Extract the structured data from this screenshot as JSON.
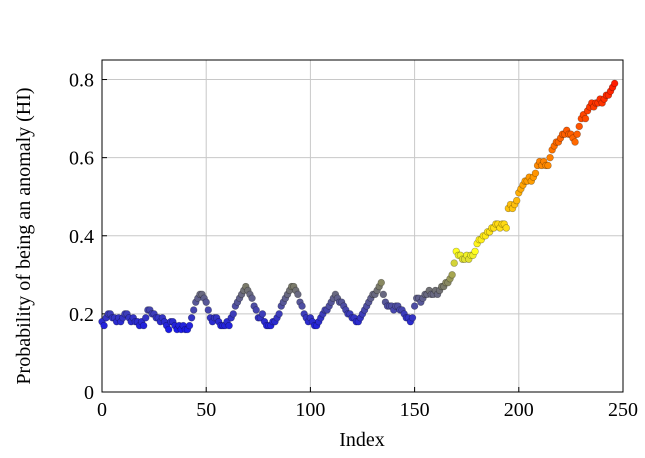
{
  "chart_data": {
    "type": "scatter",
    "x_label": "Index",
    "y_label": "Probability of being an anomaly (HI)",
    "xlim": [
      0,
      250
    ],
    "ylim": [
      0,
      0.85
    ],
    "xticks": [
      0,
      50,
      100,
      150,
      200,
      250
    ],
    "yticks": [
      0,
      0.2,
      0.4,
      0.6,
      0.8
    ],
    "grid": true,
    "colormap": [
      [
        0.16,
        "#1a1ae6"
      ],
      [
        0.27,
        "#7a7a6a"
      ],
      [
        0.36,
        "#ffff20"
      ],
      [
        0.55,
        "#ff9900"
      ],
      [
        0.79,
        "#ff1a00"
      ]
    ],
    "x": [
      0,
      1,
      2,
      3,
      4,
      5,
      6,
      7,
      8,
      9,
      10,
      11,
      12,
      13,
      14,
      15,
      16,
      17,
      18,
      19,
      20,
      21,
      22,
      23,
      24,
      25,
      26,
      27,
      28,
      29,
      30,
      31,
      32,
      33,
      34,
      35,
      36,
      37,
      38,
      39,
      40,
      41,
      42,
      43,
      44,
      45,
      46,
      47,
      48,
      49,
      50,
      51,
      52,
      53,
      54,
      55,
      56,
      57,
      58,
      59,
      60,
      61,
      62,
      63,
      64,
      65,
      66,
      67,
      68,
      69,
      70,
      71,
      72,
      73,
      74,
      75,
      76,
      77,
      78,
      79,
      80,
      81,
      82,
      83,
      84,
      85,
      86,
      87,
      88,
      89,
      90,
      91,
      92,
      93,
      94,
      95,
      96,
      97,
      98,
      99,
      100,
      101,
      102,
      103,
      104,
      105,
      106,
      107,
      108,
      109,
      110,
      111,
      112,
      113,
      114,
      115,
      116,
      117,
      118,
      119,
      120,
      121,
      122,
      123,
      124,
      125,
      126,
      127,
      128,
      129,
      130,
      131,
      132,
      133,
      134,
      135,
      136,
      137,
      138,
      139,
      140,
      141,
      142,
      143,
      144,
      145,
      146,
      147,
      148,
      149,
      150,
      151,
      152,
      153,
      154,
      155,
      156,
      157,
      158,
      159,
      160,
      161,
      162,
      163,
      164,
      165,
      166,
      167,
      168,
      169,
      170,
      171,
      172,
      173,
      174,
      175,
      176,
      177,
      178,
      179,
      180,
      181,
      182,
      183,
      184,
      185,
      186,
      187,
      188,
      189,
      190,
      191,
      192,
      193,
      194,
      195,
      196,
      197,
      198,
      199,
      200,
      201,
      202,
      203,
      204,
      205,
      206,
      207,
      208,
      209,
      210,
      211,
      212,
      213,
      214,
      215,
      216,
      217,
      218,
      219,
      220,
      221,
      222,
      223,
      224,
      225,
      226,
      227,
      228,
      229,
      230,
      231,
      232,
      233,
      234,
      235,
      236,
      237,
      238,
      239,
      240,
      241,
      242,
      243,
      244,
      245,
      246
    ],
    "values": [
      0.18,
      0.17,
      0.19,
      0.2,
      0.2,
      0.19,
      0.19,
      0.18,
      0.19,
      0.18,
      0.19,
      0.2,
      0.2,
      0.19,
      0.18,
      0.19,
      0.18,
      0.18,
      0.17,
      0.18,
      0.17,
      0.19,
      0.21,
      0.21,
      0.2,
      0.2,
      0.19,
      0.19,
      0.18,
      0.19,
      0.18,
      0.17,
      0.16,
      0.18,
      0.18,
      0.17,
      0.16,
      0.17,
      0.16,
      0.17,
      0.16,
      0.16,
      0.17,
      0.19,
      0.21,
      0.23,
      0.24,
      0.25,
      0.25,
      0.24,
      0.23,
      0.21,
      0.19,
      0.18,
      0.19,
      0.19,
      0.18,
      0.17,
      0.17,
      0.17,
      0.18,
      0.17,
      0.19,
      0.2,
      0.22,
      0.23,
      0.24,
      0.25,
      0.26,
      0.27,
      0.26,
      0.25,
      0.24,
      0.22,
      0.21,
      0.19,
      0.19,
      0.2,
      0.18,
      0.17,
      0.17,
      0.17,
      0.18,
      0.18,
      0.19,
      0.2,
      0.22,
      0.23,
      0.24,
      0.25,
      0.26,
      0.27,
      0.27,
      0.26,
      0.25,
      0.23,
      0.22,
      0.2,
      0.19,
      0.18,
      0.19,
      0.18,
      0.17,
      0.17,
      0.18,
      0.19,
      0.2,
      0.21,
      0.21,
      0.22,
      0.23,
      0.24,
      0.25,
      0.24,
      0.23,
      0.23,
      0.22,
      0.21,
      0.2,
      0.2,
      0.19,
      0.19,
      0.18,
      0.18,
      0.19,
      0.2,
      0.21,
      0.22,
      0.23,
      0.24,
      0.25,
      0.25,
      0.26,
      0.27,
      0.28,
      0.25,
      0.23,
      0.22,
      0.22,
      0.22,
      0.21,
      0.22,
      0.22,
      0.21,
      0.21,
      0.2,
      0.19,
      0.19,
      0.18,
      0.19,
      0.22,
      0.24,
      0.24,
      0.23,
      0.24,
      0.25,
      0.25,
      0.26,
      0.25,
      0.25,
      0.26,
      0.25,
      0.26,
      0.27,
      0.27,
      0.28,
      0.28,
      0.29,
      0.3,
      0.33,
      0.36,
      0.35,
      0.35,
      0.34,
      0.34,
      0.35,
      0.34,
      0.35,
      0.35,
      0.36,
      0.38,
      0.39,
      0.39,
      0.4,
      0.4,
      0.41,
      0.41,
      0.42,
      0.42,
      0.43,
      0.43,
      0.42,
      0.43,
      0.43,
      0.42,
      0.47,
      0.48,
      0.47,
      0.48,
      0.49,
      0.51,
      0.52,
      0.53,
      0.54,
      0.54,
      0.55,
      0.54,
      0.55,
      0.56,
      0.58,
      0.59,
      0.58,
      0.59,
      0.58,
      0.58,
      0.6,
      0.62,
      0.63,
      0.64,
      0.64,
      0.65,
      0.66,
      0.66,
      0.67,
      0.66,
      0.66,
      0.65,
      0.64,
      0.66,
      0.68,
      0.7,
      0.71,
      0.7,
      0.72,
      0.73,
      0.74,
      0.73,
      0.74,
      0.74,
      0.75,
      0.74,
      0.75,
      0.76,
      0.76,
      0.77,
      0.78,
      0.79
    ]
  }
}
